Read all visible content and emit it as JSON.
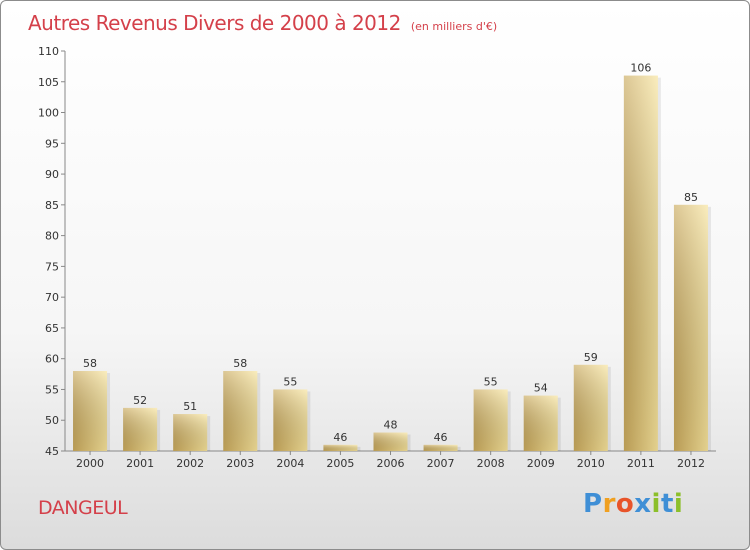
{
  "title": "Autres Revenus Divers de 2000 à 2012",
  "unit_note": "(en milliers d'€)",
  "place": "DANGEUL",
  "logo": {
    "text": "Proxiti",
    "letters": [
      {
        "ch": "P",
        "color": "#3f8fd6"
      },
      {
        "ch": "r",
        "color": "#f0a020"
      },
      {
        "ch": "o",
        "color": "#e8542a"
      },
      {
        "ch": "x",
        "color": "#3f8fd6"
      },
      {
        "ch": "i",
        "color": "#8cbf2a"
      },
      {
        "ch": "t",
        "color": "#3f8fd6"
      },
      {
        "ch": "i",
        "color": "#8cbf2a"
      }
    ]
  },
  "chart_data": {
    "type": "bar",
    "categories": [
      "2000",
      "2001",
      "2002",
      "2003",
      "2004",
      "2005",
      "2006",
      "2007",
      "2008",
      "2009",
      "2010",
      "2011",
      "2012"
    ],
    "values": [
      58,
      52,
      51,
      58,
      55,
      46,
      48,
      46,
      55,
      54,
      59,
      106,
      85
    ],
    "ylim": [
      45,
      110
    ],
    "yticks": [
      45,
      50,
      55,
      60,
      65,
      70,
      75,
      80,
      85,
      90,
      95,
      100,
      105,
      110
    ],
    "grid": false,
    "bar_color_light": "#f7e39a",
    "bar_color_dark": "#c9a95c"
  }
}
